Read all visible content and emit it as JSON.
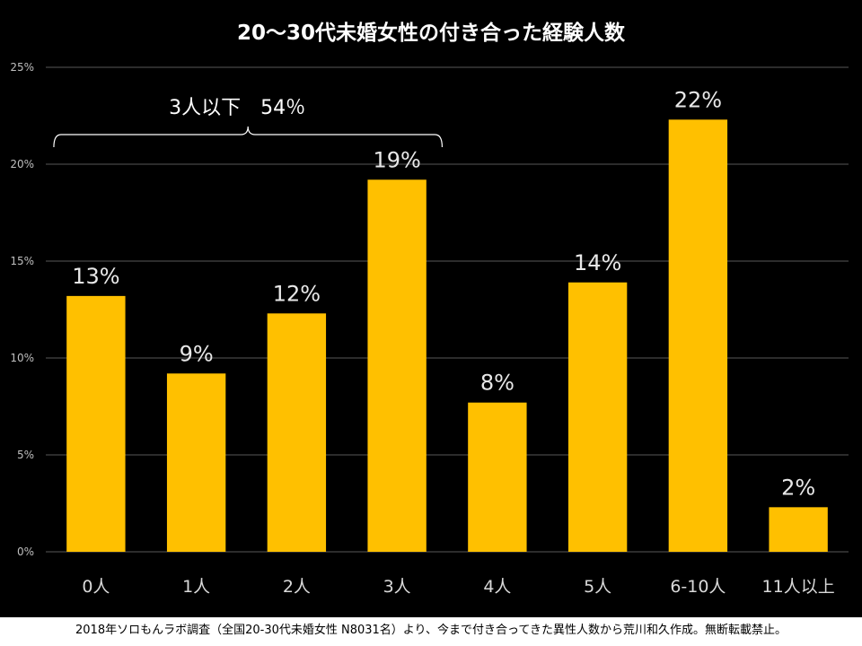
{
  "chart_data": {
    "type": "bar",
    "title": "20〜30代未婚女性の付き合った経験人数",
    "categories": [
      "0人",
      "1人",
      "2人",
      "3人",
      "4人",
      "5人",
      "6-10人",
      "11人以上"
    ],
    "values": [
      13.2,
      9.2,
      12.3,
      19.2,
      7.7,
      13.9,
      22.3,
      2.3
    ],
    "value_labels": [
      "13%",
      "9%",
      "12%",
      "19%",
      "8%",
      "14%",
      "22%",
      "2%"
    ],
    "ylim": [
      0,
      25
    ],
    "yticks": [
      0,
      5,
      10,
      15,
      20,
      25
    ],
    "ytick_labels": [
      "0%",
      "5%",
      "10%",
      "15%",
      "20%",
      "25%"
    ],
    "xlabel": "",
    "ylabel": "",
    "grid": true,
    "annotation": {
      "label": "3人以下",
      "value": "54％",
      "span_categories": [
        "0人",
        "3人"
      ]
    }
  },
  "colors": {
    "background": "#000000",
    "bar": "#FFC000",
    "text": "#FFFFFF",
    "value_label": "#E8E8E8",
    "category_label": "#D9D9D9",
    "axis_label": "#BFBFBF",
    "grid": "#595959"
  },
  "footer": {
    "text": "2018年ソロもんラボ調査（全国20-30代未婚女性 N8031名）より、今まで付き合ってきた異性人数から荒川和久作成。無断転載禁止。"
  }
}
